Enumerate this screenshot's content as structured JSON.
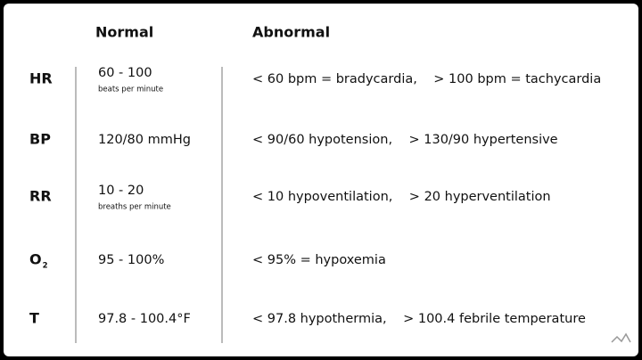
{
  "header": {
    "normal": "Normal",
    "abnormal": "Abnormal"
  },
  "rows": [
    {
      "label": "HR",
      "normal": "60 - 100",
      "normal_sub": "beats per minute",
      "abnormal": "< 60 bpm = bradycardia,    > 100 bpm = tachycardia"
    },
    {
      "label": "BP",
      "normal": "120/80 mmHg",
      "abnormal": "< 90/60 hypotension,    > 130/90 hypertensive"
    },
    {
      "label": "RR",
      "normal": "10 - 20",
      "normal_sub": "breaths per minute",
      "abnormal": "< 10 hypoventilation,    > 20 hyperventilation"
    },
    {
      "label": "O",
      "label_sub": "2",
      "normal": "95 - 100%",
      "abnormal": "< 95% = hypoxemia"
    },
    {
      "label": "T",
      "normal": "97.8 - 100.4°F",
      "abnormal": "< 97.8 hypothermia,    > 100.4 febrile temperature"
    }
  ]
}
